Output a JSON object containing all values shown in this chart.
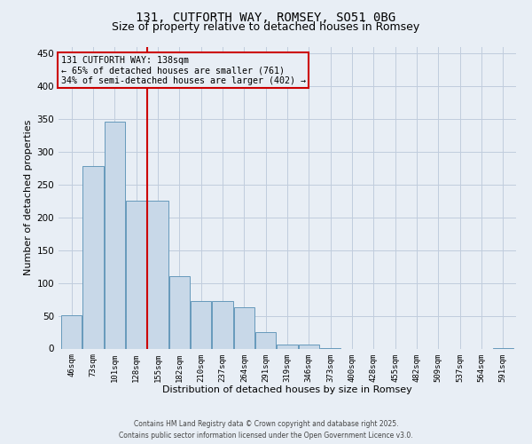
{
  "title1": "131, CUTFORTH WAY, ROMSEY, SO51 0BG",
  "title2": "Size of property relative to detached houses in Romsey",
  "xlabel": "Distribution of detached houses by size in Romsey",
  "ylabel": "Number of detached properties",
  "bar_color": "#c8d8e8",
  "bar_edge_color": "#6699bb",
  "categories": [
    "46sqm",
    "73sqm",
    "101sqm",
    "128sqm",
    "155sqm",
    "182sqm",
    "210sqm",
    "237sqm",
    "264sqm",
    "291sqm",
    "319sqm",
    "346sqm",
    "373sqm",
    "400sqm",
    "428sqm",
    "455sqm",
    "482sqm",
    "509sqm",
    "537sqm",
    "564sqm",
    "591sqm"
  ],
  "values": [
    51,
    278,
    345,
    225,
    225,
    110,
    73,
    73,
    63,
    25,
    6,
    6,
    1,
    0,
    0,
    0,
    0,
    0,
    0,
    0,
    1
  ],
  "vline_x": 3.5,
  "vline_color": "#cc0000",
  "annotation_text": "131 CUTFORTH WAY: 138sqm\n← 65% of detached houses are smaller (761)\n34% of semi-detached houses are larger (402) →",
  "annotation_box_color": "#cc0000",
  "ylim": [
    0,
    460
  ],
  "yticks": [
    0,
    50,
    100,
    150,
    200,
    250,
    300,
    350,
    400,
    450
  ],
  "grid_color": "#c0ccdd",
  "background_color": "#e8eef5",
  "footer1": "Contains HM Land Registry data © Crown copyright and database right 2025.",
  "footer2": "Contains public sector information licensed under the Open Government Licence v3.0.",
  "title_fontsize": 10,
  "subtitle_fontsize": 9
}
